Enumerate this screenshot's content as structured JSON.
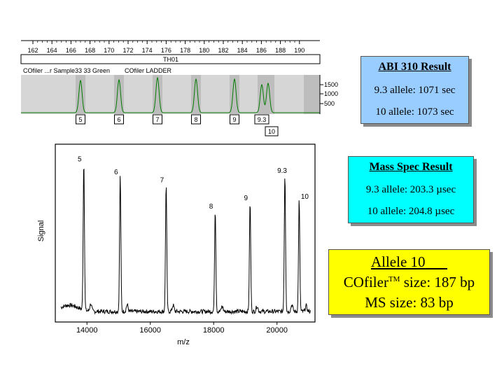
{
  "egram": {
    "scale_ticks": [
      "162",
      "164",
      "166",
      "168",
      "170",
      "172",
      "174",
      "176",
      "178",
      "180",
      "182",
      "184",
      "186",
      "188",
      "190"
    ],
    "marker": "TH01",
    "sample_label": "COfiler ...r Sample33 33 Green",
    "ladder_label": "COfiler LADDER",
    "y_ticks": [
      "1500",
      "1000",
      "500"
    ],
    "peaks": [
      {
        "label": "5"
      },
      {
        "label": "6"
      },
      {
        "label": "7"
      },
      {
        "label": "8"
      },
      {
        "label": "9"
      },
      {
        "label": "9.3"
      }
    ],
    "extra_label": "10"
  },
  "abi_box": {
    "title": "ABI 310 Result",
    "line1": "9.3 allele: 1071 sec",
    "line2": "10 allele: 1073 sec"
  },
  "ms_box": {
    "title": "Mass Spec Result",
    "line1_prefix": "9.3 allele: 203.3 ",
    "line1_unit_mu": "µ",
    "line1_unit": "sec",
    "line2_prefix": "10 allele: 204.8 ",
    "line2_unit_mu": "µ",
    "line2_unit": "sec"
  },
  "allele_box": {
    "title": "Allele 10",
    "line2_prefix": "COfiler",
    "line2_tm": "TM",
    "line2_suffix": " size: 187 bp",
    "line3": "MS size: 83 bp"
  },
  "chart_data": {
    "type": "line",
    "xlabel": "m/z",
    "ylabel": "Signal",
    "x_ticks": [
      "14000",
      "16000",
      "18000",
      "20000"
    ],
    "xlim": [
      13000,
      21200
    ],
    "peaks": [
      {
        "label": "5",
        "x": 13900,
        "height": 0.92
      },
      {
        "label": "6",
        "x": 15050,
        "height": 0.84
      },
      {
        "label": "7",
        "x": 16500,
        "height": 0.79
      },
      {
        "label": "8",
        "x": 18050,
        "height": 0.63
      },
      {
        "label": "9",
        "x": 19150,
        "height": 0.68
      },
      {
        "label": "9.3",
        "x": 20250,
        "height": 0.85
      },
      {
        "label": "10",
        "x": 20700,
        "height": 0.69
      }
    ]
  }
}
